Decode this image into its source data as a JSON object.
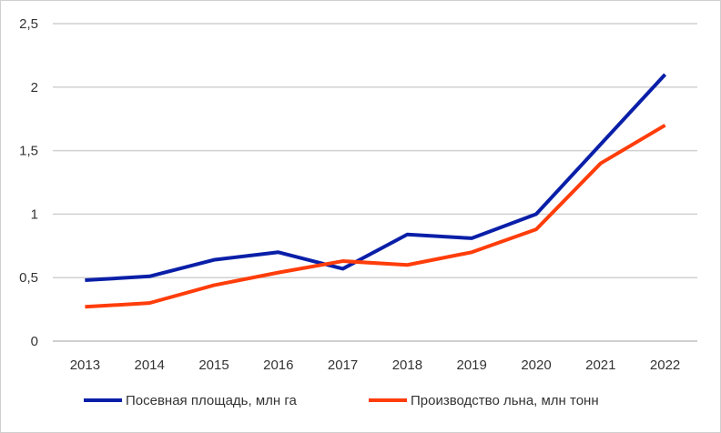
{
  "chart_data": {
    "type": "line",
    "title": "",
    "xlabel": "",
    "ylabel": "",
    "categories": [
      "2013",
      "2014",
      "2015",
      "2016",
      "2017",
      "2018",
      "2019",
      "2020",
      "2021",
      "2022"
    ],
    "ylim": [
      0,
      2.5
    ],
    "yticks": [
      "0",
      "0,5",
      "1",
      "1,5",
      "2",
      "2,5"
    ],
    "ytick_values": [
      0,
      0.5,
      1,
      1.5,
      2,
      2.5
    ],
    "grid": true,
    "legend_position": "bottom",
    "series": [
      {
        "name": "Посевная площадь, млн га",
        "color": "#0a1fa8",
        "values": [
          0.48,
          0.51,
          0.64,
          0.7,
          0.57,
          0.84,
          0.81,
          1.0,
          1.55,
          2.1
        ]
      },
      {
        "name": "Производство льна, млн тонн",
        "color": "#ff3d0a",
        "values": [
          0.27,
          0.3,
          0.44,
          0.54,
          0.63,
          0.6,
          0.7,
          0.88,
          1.4,
          1.7
        ]
      }
    ]
  }
}
